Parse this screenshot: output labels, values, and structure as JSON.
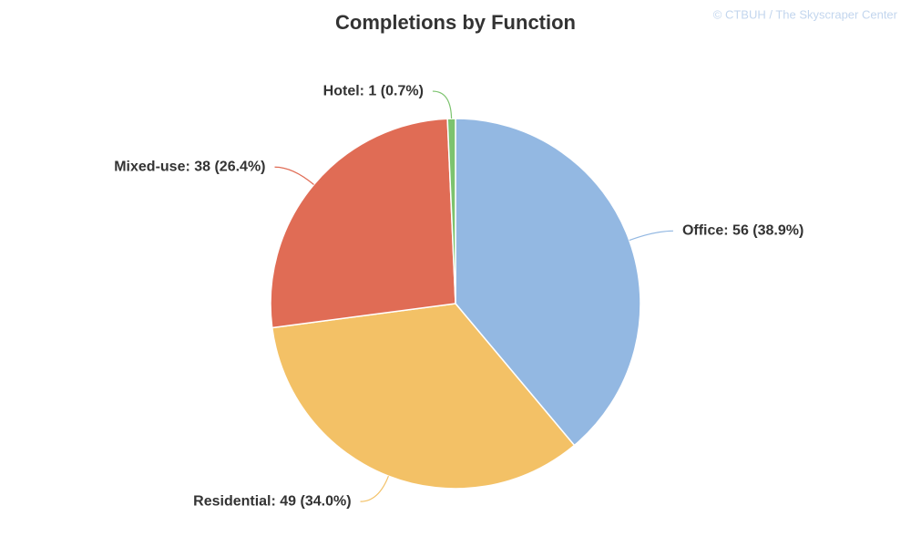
{
  "chart_data": {
    "type": "pie",
    "title": "Completions by Function",
    "credit": "© CTBUH / The Skyscraper Center",
    "values": [
      56,
      49,
      38,
      1
    ],
    "value_labels": [
      "Office: 56 (38.9%)",
      "Residential: 49 (34.0%)",
      "Mixed-use: 38 (26.4%)",
      "Hotel: 1 (0.7%)"
    ],
    "colors": [
      "#93b8e2",
      "#f3c166",
      "#e06c55",
      "#7cc36e"
    ]
  }
}
